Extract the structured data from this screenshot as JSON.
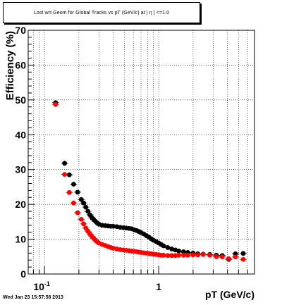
{
  "chart_data": {
    "type": "scatter",
    "title": "Lost wrt Geom for Global Tracks vs pT (GeV/c) at | η | <=1.0",
    "xlabel": "pT (GeV/c)",
    "ylabel": "Efficiency (%)",
    "xscale": "log",
    "xlim": [
      0.072,
      6.9
    ],
    "ylim": [
      0,
      70
    ],
    "grid": true,
    "x_ticks": [
      {
        "value": 0.1,
        "base": "10",
        "exp": "-1"
      },
      {
        "value": 1,
        "base": "1",
        "exp": ""
      }
    ],
    "y_ticks": [
      "0",
      "10",
      "20",
      "30",
      "40",
      "50",
      "60",
      "70"
    ],
    "series": [
      {
        "color": "#000000",
        "points": [
          [
            0.125,
            49.2
          ],
          [
            0.15,
            31.8
          ],
          [
            0.165,
            28.5
          ],
          [
            0.18,
            25.8
          ],
          [
            0.195,
            23.5
          ],
          [
            0.21,
            21.4
          ],
          [
            0.22,
            20.4
          ],
          [
            0.23,
            19.2
          ],
          [
            0.24,
            18.0
          ],
          [
            0.25,
            17.0
          ],
          [
            0.26,
            16.2
          ],
          [
            0.27,
            15.6
          ],
          [
            0.28,
            15.1
          ],
          [
            0.29,
            14.6
          ],
          [
            0.3,
            14.3
          ],
          [
            0.32,
            14.0
          ],
          [
            0.34,
            13.9
          ],
          [
            0.36,
            13.8
          ],
          [
            0.38,
            13.7
          ],
          [
            0.4,
            13.7
          ],
          [
            0.43,
            13.6
          ],
          [
            0.46,
            13.4
          ],
          [
            0.49,
            13.3
          ],
          [
            0.52,
            13.2
          ],
          [
            0.55,
            13.1
          ],
          [
            0.58,
            13.0
          ],
          [
            0.61,
            12.7
          ],
          [
            0.64,
            12.5
          ],
          [
            0.67,
            12.2
          ],
          [
            0.7,
            11.9
          ],
          [
            0.74,
            11.5
          ],
          [
            0.78,
            11.0
          ],
          [
            0.82,
            10.6
          ],
          [
            0.86,
            10.1
          ],
          [
            0.9,
            9.7
          ],
          [
            0.95,
            9.3
          ],
          [
            1.0,
            8.9
          ],
          [
            1.05,
            8.5
          ],
          [
            1.1,
            8.1
          ],
          [
            1.2,
            7.6
          ],
          [
            1.3,
            7.2
          ],
          [
            1.4,
            6.9
          ],
          [
            1.5,
            6.6
          ],
          [
            1.65,
            6.4
          ],
          [
            1.8,
            6.2
          ],
          [
            2.0,
            6.0
          ],
          [
            2.2,
            5.8
          ],
          [
            2.45,
            5.7
          ],
          [
            2.8,
            5.6
          ],
          [
            3.2,
            5.4
          ],
          [
            3.6,
            5.3
          ],
          [
            4.1,
            4.2
          ],
          [
            4.7,
            5.8
          ],
          [
            5.5,
            5.9
          ]
        ]
      },
      {
        "color": "#ff0000",
        "points": [
          [
            0.125,
            48.7
          ],
          [
            0.15,
            28.6
          ],
          [
            0.165,
            23.4
          ],
          [
            0.18,
            20.4
          ],
          [
            0.195,
            17.6
          ],
          [
            0.21,
            15.7
          ],
          [
            0.22,
            14.4
          ],
          [
            0.23,
            13.2
          ],
          [
            0.24,
            12.3
          ],
          [
            0.25,
            11.5
          ],
          [
            0.26,
            10.8
          ],
          [
            0.27,
            10.2
          ],
          [
            0.28,
            9.7
          ],
          [
            0.29,
            9.2
          ],
          [
            0.3,
            8.9
          ],
          [
            0.32,
            8.5
          ],
          [
            0.34,
            8.2
          ],
          [
            0.36,
            7.9
          ],
          [
            0.38,
            7.6
          ],
          [
            0.4,
            7.4
          ],
          [
            0.43,
            7.2
          ],
          [
            0.46,
            7.0
          ],
          [
            0.49,
            6.9
          ],
          [
            0.52,
            6.8
          ],
          [
            0.55,
            6.7
          ],
          [
            0.58,
            6.6
          ],
          [
            0.61,
            6.5
          ],
          [
            0.64,
            6.4
          ],
          [
            0.67,
            6.3
          ],
          [
            0.7,
            6.2
          ],
          [
            0.74,
            6.1
          ],
          [
            0.78,
            6.0
          ],
          [
            0.82,
            5.9
          ],
          [
            0.86,
            5.8
          ],
          [
            0.9,
            5.7
          ],
          [
            0.95,
            5.6
          ],
          [
            1.0,
            5.5
          ],
          [
            1.05,
            5.4
          ],
          [
            1.1,
            5.4
          ],
          [
            1.2,
            5.3
          ],
          [
            1.3,
            5.3
          ],
          [
            1.4,
            5.3
          ],
          [
            1.5,
            5.4
          ],
          [
            1.65,
            5.4
          ],
          [
            1.8,
            5.4
          ],
          [
            2.0,
            5.5
          ],
          [
            2.2,
            5.5
          ],
          [
            2.45,
            5.6
          ],
          [
            2.8,
            5.4
          ],
          [
            3.2,
            5.0
          ],
          [
            3.6,
            4.9
          ],
          [
            4.1,
            4.4
          ],
          [
            4.7,
            4.9
          ],
          [
            5.5,
            4.2
          ]
        ]
      }
    ]
  },
  "footer": {
    "timestamp": "Wed Jan 23 15:57:58 2013"
  }
}
